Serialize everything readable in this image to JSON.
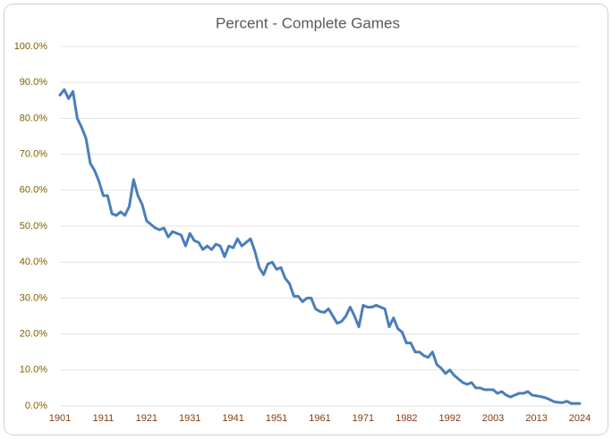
{
  "chart_data": {
    "type": "line",
    "title": "Percent - Complete Games",
    "categories": [
      "1901",
      null,
      null,
      null,
      null,
      null,
      null,
      null,
      null,
      null,
      "1911",
      null,
      null,
      null,
      null,
      null,
      null,
      null,
      null,
      null,
      "1921",
      null,
      null,
      null,
      null,
      null,
      null,
      null,
      null,
      null,
      "1931",
      null,
      null,
      null,
      null,
      null,
      null,
      null,
      null,
      null,
      "1941",
      null,
      null,
      null,
      null,
      null,
      null,
      null,
      null,
      null,
      "1951",
      null,
      null,
      null,
      null,
      null,
      null,
      null,
      null,
      null,
      "1961",
      null,
      null,
      null,
      null,
      null,
      null,
      null,
      null,
      null,
      "1971",
      null,
      null,
      null,
      null,
      null,
      null,
      null,
      null,
      null,
      "1982",
      null,
      null,
      null,
      null,
      null,
      null,
      null,
      null,
      null,
      "1992",
      null,
      null,
      null,
      null,
      null,
      null,
      null,
      null,
      null,
      "2003",
      null,
      null,
      null,
      null,
      null,
      null,
      null,
      null,
      null,
      "2013",
      null,
      null,
      null,
      null,
      null,
      null,
      null,
      null,
      null,
      "2024"
    ],
    "values": [
      86.5,
      88,
      85.5,
      87.5,
      80,
      77.5,
      74.5,
      67.5,
      65.5,
      62.5,
      58.5,
      58.5,
      53.5,
      53,
      54,
      53,
      55.5,
      63,
      58.5,
      56,
      51.5,
      50.5,
      49.5,
      49,
      49.5,
      47,
      48.5,
      48,
      47.5,
      44.5,
      48,
      46,
      45.5,
      43.5,
      44.5,
      43.5,
      45,
      44.5,
      41.5,
      44.5,
      44,
      46.5,
      44.5,
      45.5,
      46.5,
      43,
      38.5,
      36.5,
      39.5,
      40,
      38,
      38.5,
      35.5,
      34,
      30.5,
      30.5,
      29,
      30,
      30,
      27,
      26.3,
      26,
      27,
      25,
      23,
      23.5,
      25,
      27.5,
      25,
      22,
      28,
      27.5,
      27.5,
      28,
      27.5,
      27,
      22,
      24.5,
      21.5,
      20.5,
      17.5,
      17.5,
      15,
      15,
      14,
      13.5,
      15,
      11.5,
      10.5,
      9,
      10,
      8.5,
      7.5,
      6.5,
      6,
      6.5,
      5,
      5,
      4.5,
      4.5,
      4.5,
      3.5,
      4,
      3,
      2.5,
      3,
      3.5,
      3.5,
      4,
      3,
      2.8,
      2.6,
      2.3,
      1.8,
      1.2,
      1.0,
      0.9,
      1.3,
      0.7,
      0.7,
      0.7
    ],
    "color": "#4a7ebb",
    "ylim": [
      0,
      100
    ],
    "yticks": [
      {
        "value": 0,
        "label": "0.0%"
      },
      {
        "value": 10,
        "label": "10.0%"
      },
      {
        "value": 20,
        "label": "20.0%"
      },
      {
        "value": 30,
        "label": "30.0%"
      },
      {
        "value": 40,
        "label": "40.0%"
      },
      {
        "value": 50,
        "label": "50.0%"
      },
      {
        "value": 60,
        "label": "60.0%"
      },
      {
        "value": 70,
        "label": "70.0%"
      },
      {
        "value": 80,
        "label": "80.0%"
      },
      {
        "value": 90,
        "label": "90.0%"
      },
      {
        "value": 100,
        "label": "100.0%"
      }
    ],
    "grid": true
  }
}
